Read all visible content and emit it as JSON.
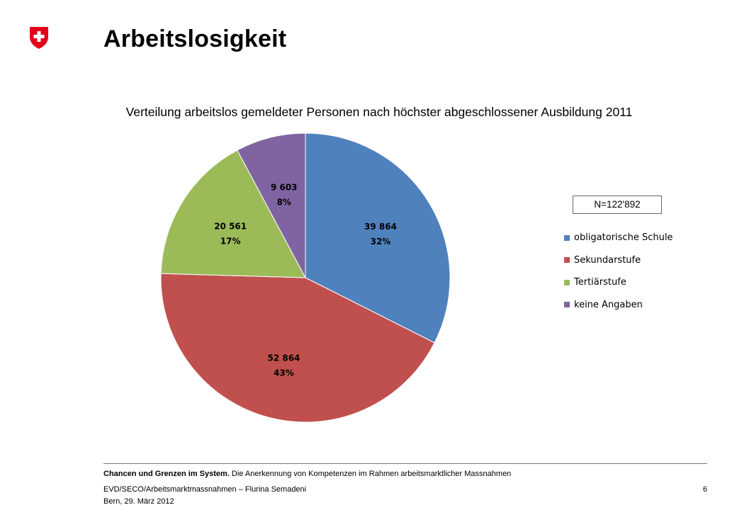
{
  "header": {
    "title": "Arbeitslosigkeit"
  },
  "chart_data": {
    "type": "pie",
    "title": "Verteilung arbeitslos gemeldeter Personen nach höchster abgeschlossener Ausbildung  2011",
    "categories": [
      "obligatorische Schule",
      "Sekundarstufe",
      "Tertiärstufe",
      "keine Angaben"
    ],
    "values": [
      39864,
      52864,
      20561,
      9603
    ],
    "value_labels": [
      "39 864",
      "52 864",
      "20 561",
      "9 603"
    ],
    "percent_labels": [
      "32%",
      "43%",
      "17%",
      "8%"
    ],
    "colors": [
      "#4F81BD",
      "#C0504D",
      "#9BBB59",
      "#8064A2"
    ],
    "total_label": "N=122'892",
    "legend_position": "right"
  },
  "footer": {
    "line1_bold": "Chancen und Grenzen im System.",
    "line1_rest": " Die Anerkennung von Kompetenzen im Rahmen arbeitsmarktlicher Massnahmen",
    "line2": "EVD/SECO/Arbeitsmarktmassnahmen – Flurina Semadeni",
    "line3": "Bern, 29. März 2012",
    "page_number": "6"
  }
}
